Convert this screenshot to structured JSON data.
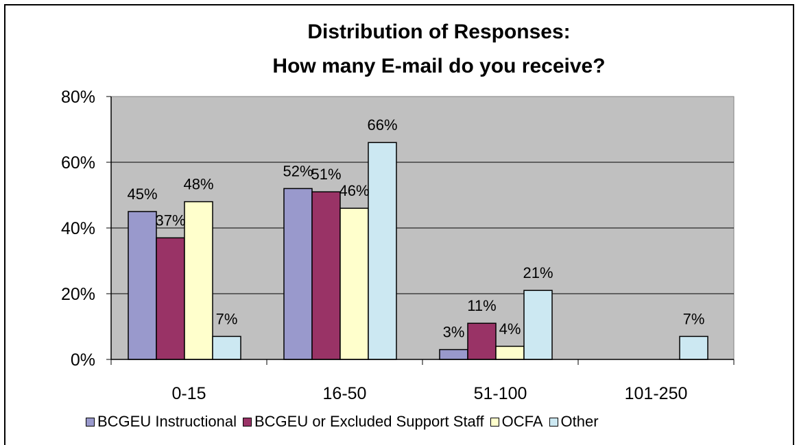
{
  "chart_data": {
    "type": "bar",
    "title_lines": [
      "Distribution of Responses:",
      "How many E-mail  do you receive?"
    ],
    "categories": [
      "0-15",
      "16-50",
      "51-100",
      "101-250"
    ],
    "series": [
      {
        "name": "BCGEU Instructional",
        "color": "#9999cc",
        "values": [
          45,
          52,
          3,
          null
        ],
        "labels": [
          "45%",
          "52%",
          "3%",
          ""
        ]
      },
      {
        "name": "BCGEU or Excluded Support Staff",
        "color": "#993366",
        "values": [
          37,
          51,
          11,
          null
        ],
        "labels": [
          "37%",
          "51%",
          "11%",
          ""
        ]
      },
      {
        "name": "OCFA",
        "color": "#ffffcc",
        "values": [
          48,
          46,
          4,
          null
        ],
        "labels": [
          "48%",
          "46%",
          "4%",
          ""
        ]
      },
      {
        "name": "Other",
        "color": "#cce8f2",
        "values": [
          7,
          66,
          21,
          7
        ],
        "labels": [
          "7%",
          "66%",
          "21%",
          "7%"
        ]
      }
    ],
    "y_ticks": [
      "0%",
      "20%",
      "40%",
      "60%",
      "80%"
    ],
    "ylim": [
      0,
      80
    ],
    "grid": true,
    "plot_background": "#c0c0c0",
    "legend_position": "bottom"
  }
}
